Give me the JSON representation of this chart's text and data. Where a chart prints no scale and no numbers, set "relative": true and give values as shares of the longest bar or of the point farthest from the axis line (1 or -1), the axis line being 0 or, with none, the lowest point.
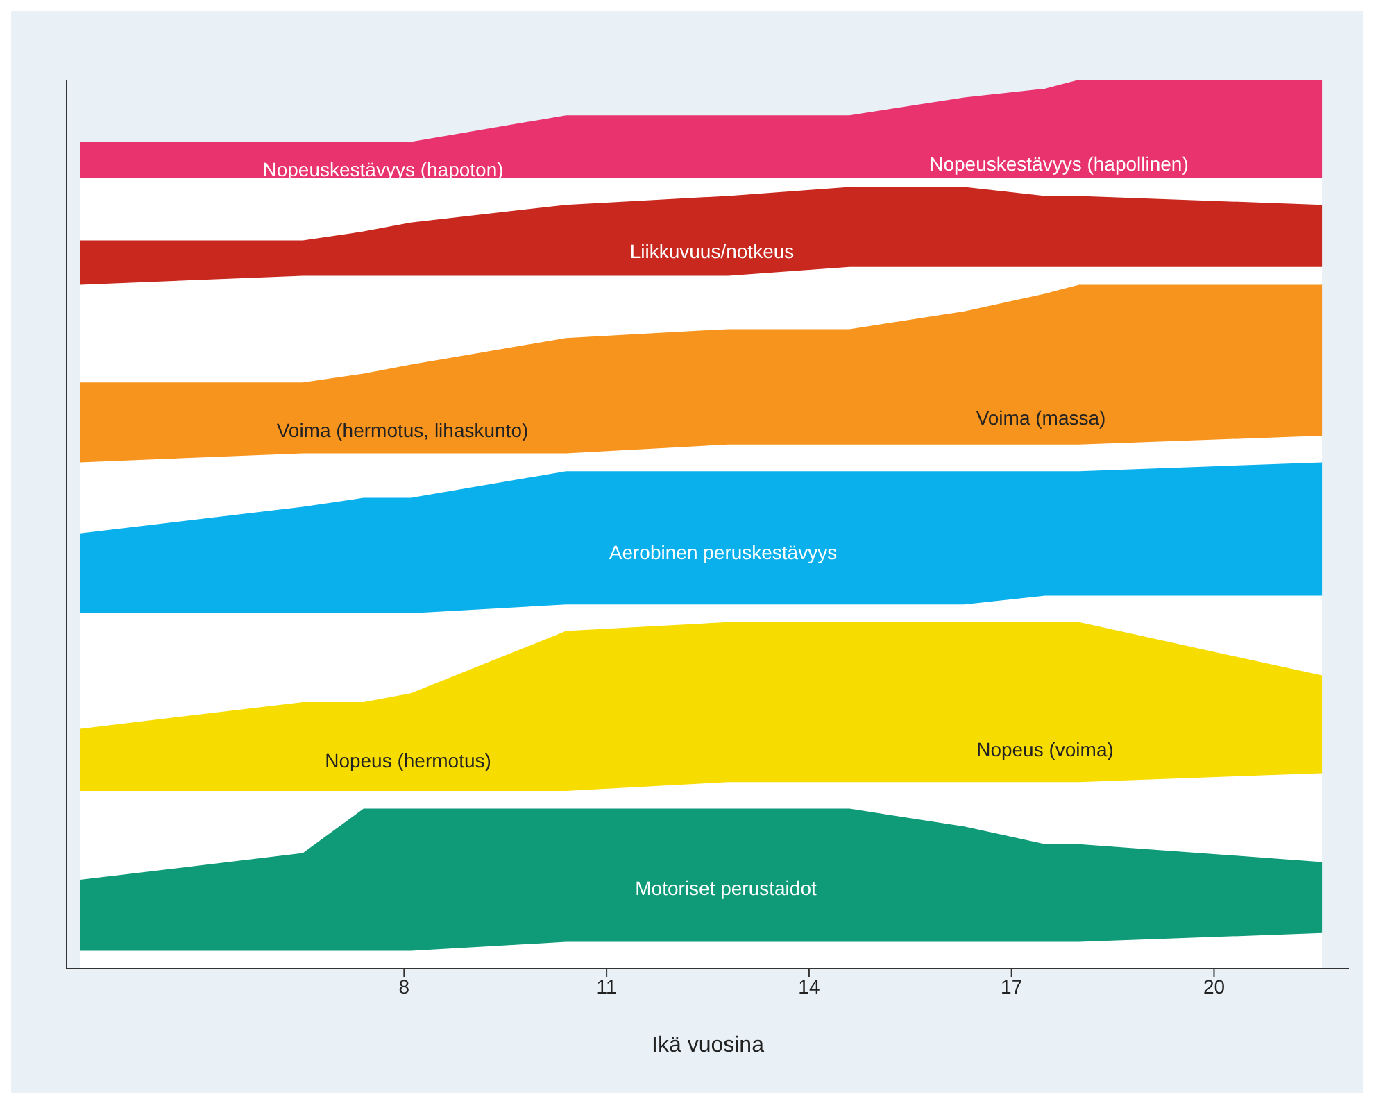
{
  "chart_data": {
    "type": "area",
    "relative": true,
    "stacked": true,
    "xlabel": "Ikä vuosina",
    "xlim": [
      3,
      22
    ],
    "xticks": [
      8,
      11,
      14,
      17,
      20
    ],
    "grid": false,
    "legend": false,
    "tick_labels": "x",
    "x": [
      3.2,
      6.5,
      7.4,
      8.1,
      10.4,
      12.8,
      14.6,
      16.3,
      17.5,
      18,
      21.6
    ],
    "series": [
      {
        "color": "#ffffff",
        "values": [
          0.02,
          0.02,
          0.02,
          0.02,
          0.03,
          0.03,
          0.03,
          0.03,
          0.03,
          0.03,
          0.04
        ]
      },
      {
        "color": "#0f9a78",
        "values": [
          0.08,
          0.11,
          0.16,
          0.16,
          0.15,
          0.15,
          0.15,
          0.13,
          0.11,
          0.11,
          0.08
        ]
      },
      {
        "color": "#ffffff",
        "values": [
          0.1,
          0.07,
          0.02,
          0.02,
          0.02,
          0.03,
          0.03,
          0.05,
          0.07,
          0.07,
          0.1
        ]
      },
      {
        "color": "#f7dc00",
        "values": [
          0.07,
          0.1,
          0.1,
          0.11,
          0.18,
          0.18,
          0.18,
          0.18,
          0.18,
          0.18,
          0.11
        ]
      },
      {
        "color": "#ffffff",
        "values": [
          0.13,
          0.1,
          0.1,
          0.09,
          0.03,
          0.02,
          0.02,
          0.02,
          0.03,
          0.03,
          0.09
        ]
      },
      {
        "color": "#0ab0ec",
        "values": [
          0.09,
          0.12,
          0.13,
          0.13,
          0.15,
          0.15,
          0.15,
          0.15,
          0.14,
          0.14,
          0.15
        ]
      },
      {
        "color": "#ffffff",
        "values": [
          0.08,
          0.06,
          0.05,
          0.05,
          0.02,
          0.03,
          0.03,
          0.03,
          0.03,
          0.03,
          0.03
        ]
      },
      {
        "color": "#f7941d",
        "values": [
          0.09,
          0.08,
          0.09,
          0.1,
          0.13,
          0.13,
          0.13,
          0.15,
          0.17,
          0.18,
          0.17
        ]
      },
      {
        "color": "#ffffff",
        "values": [
          0.11,
          0.12,
          0.11,
          0.1,
          0.07,
          0.06,
          0.07,
          0.05,
          0.03,
          0.02,
          0.02
        ]
      },
      {
        "color": "#c8281e",
        "values": [
          0.05,
          0.04,
          0.05,
          0.06,
          0.08,
          0.09,
          0.09,
          0.09,
          0.08,
          0.08,
          0.07
        ]
      },
      {
        "color": "#ffffff",
        "values": [
          0.07,
          0.07,
          0.06,
          0.05,
          0.03,
          0.02,
          0.01,
          0.01,
          0.02,
          0.02,
          0.03
        ]
      },
      {
        "color": "#e8336f",
        "values": [
          0.04,
          0.04,
          0.04,
          0.04,
          0.07,
          0.07,
          0.07,
          0.09,
          0.1,
          0.11,
          0.11
        ]
      }
    ],
    "annotations": [
      "Nopeuskestävyys (hapoton)",
      "Nopeuskestävyys (hapollinen)",
      "Liikkuvuus/notkeus",
      "Voima (hermotus, lihaskunto)",
      "Voima (massa)",
      "Aerobinen peruskestävyys",
      "Nopeus (hermotus)",
      "Nopeus (voima)",
      "Motoriset perustaidot"
    ]
  }
}
